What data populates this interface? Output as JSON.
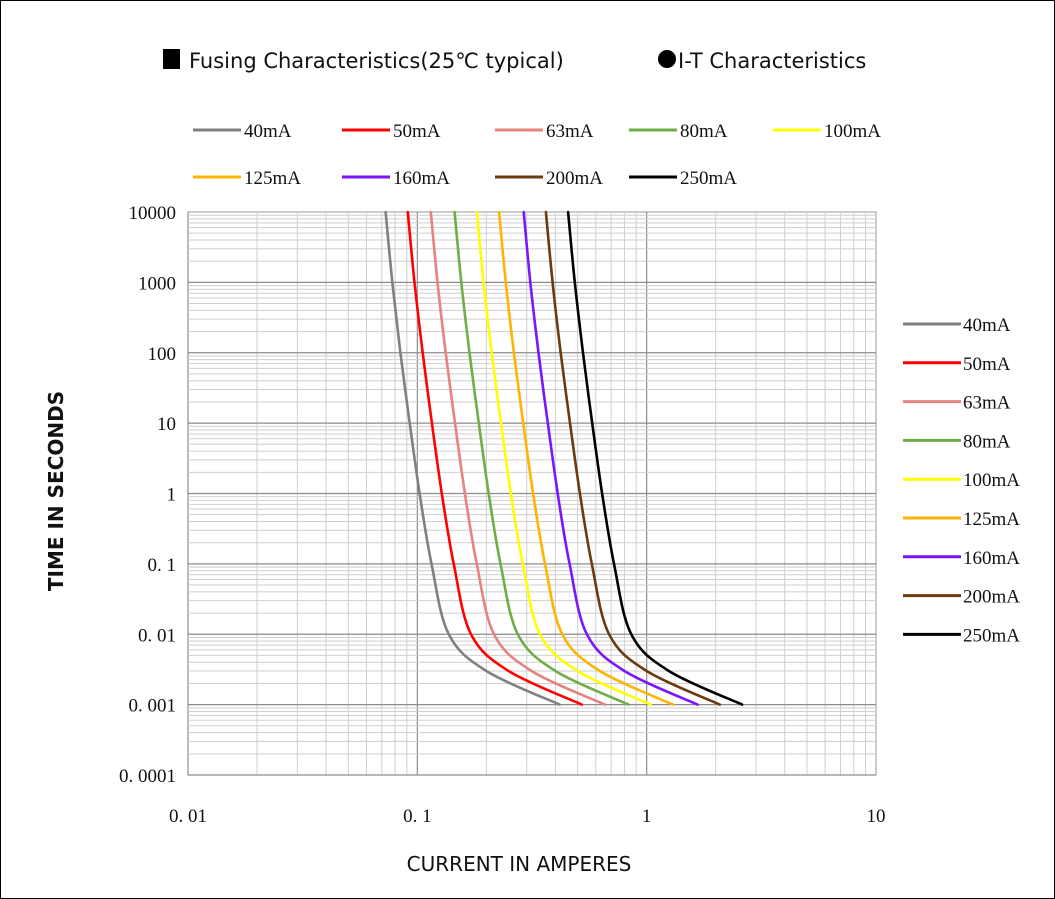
{
  "header": {
    "items": [
      {
        "marker": "square",
        "label": "Fusing Characteristics(25℃ typical)"
      },
      {
        "marker": "circle",
        "label": "I-T Characteristics"
      }
    ]
  },
  "chart_data": {
    "type": "line",
    "xscale": "log",
    "yscale": "log",
    "xlim": [
      0.01,
      10
    ],
    "ylim": [
      0.0001,
      10000
    ],
    "xlabel": "CURRENT IN AMPERES",
    "ylabel": "TIME IN SECONDS",
    "xtick_labels": [
      "0. 01",
      "0. 1",
      "1",
      "10"
    ],
    "ytick_labels": [
      "10000",
      "1000",
      "100",
      "10",
      "1",
      "0. 1",
      "0. 01",
      "0. 001",
      "0. 0001"
    ],
    "grid": true,
    "legend_placement": "top and right",
    "series": [
      {
        "name": "40mA",
        "color": "#808080",
        "x": [
          0.0727,
          0.0778,
          0.0844,
          0.0926,
          0.1023,
          0.1153,
          0.1371,
          0.2001,
          0.417
        ],
        "y": [
          10000,
          1000,
          100,
          10,
          1,
          0.1,
          0.01,
          0.003,
          0.001
        ]
      },
      {
        "name": "50mA",
        "color": "#ff0000",
        "x": [
          0.0909,
          0.0972,
          0.1055,
          0.1158,
          0.1279,
          0.1441,
          0.1714,
          0.2501,
          0.5213
        ],
        "y": [
          10000,
          1000,
          100,
          10,
          1,
          0.1,
          0.01,
          0.003,
          0.001
        ]
      },
      {
        "name": "63mA",
        "color": "#e6837f",
        "x": [
          0.1145,
          0.1225,
          0.1329,
          0.1459,
          0.1612,
          0.1816,
          0.216,
          0.3151,
          0.6568
        ],
        "y": [
          10000,
          1000,
          100,
          10,
          1,
          0.1,
          0.01,
          0.003,
          0.001
        ]
      },
      {
        "name": "80mA",
        "color": "#70ad47",
        "x": [
          0.1454,
          0.1555,
          0.1688,
          0.1853,
          0.2047,
          0.2306,
          0.2743,
          0.4002,
          0.834
        ],
        "y": [
          10000,
          1000,
          100,
          10,
          1,
          0.1,
          0.01,
          0.003,
          0.001
        ]
      },
      {
        "name": "100mA",
        "color": "#ffff00",
        "x": [
          0.1818,
          0.1944,
          0.211,
          0.2316,
          0.2558,
          0.2883,
          0.3428,
          0.5002,
          1.0425
        ],
        "y": [
          10000,
          1000,
          100,
          10,
          1,
          0.1,
          0.01,
          0.003,
          0.001
        ]
      },
      {
        "name": "125mA",
        "color": "#ffb400",
        "x": [
          0.2273,
          0.243,
          0.2638,
          0.2895,
          0.3198,
          0.3604,
          0.4285,
          0.6253,
          1.3031
        ],
        "y": [
          10000,
          1000,
          100,
          10,
          1,
          0.1,
          0.01,
          0.003,
          0.001
        ]
      },
      {
        "name": "160mA",
        "color": "#7a16ff",
        "x": [
          0.2909,
          0.311,
          0.3376,
          0.3706,
          0.4093,
          0.4612,
          0.5485,
          0.8003,
          1.668
        ],
        "y": [
          10000,
          1000,
          100,
          10,
          1,
          0.1,
          0.01,
          0.003,
          0.001
        ]
      },
      {
        "name": "200mA",
        "color": "#6b3a0e",
        "x": [
          0.3636,
          0.3888,
          0.422,
          0.4632,
          0.5116,
          0.5765,
          0.6856,
          1.0004,
          2.085
        ],
        "y": [
          10000,
          1000,
          100,
          10,
          1,
          0.1,
          0.01,
          0.003,
          0.001
        ]
      },
      {
        "name": "250mA",
        "color": "#000000",
        "x": [
          0.4545,
          0.486,
          0.5275,
          0.579,
          0.6395,
          0.7206,
          0.857,
          1.2505,
          2.6063
        ],
        "y": [
          10000,
          1000,
          100,
          10,
          1,
          0.1,
          0.01,
          0.003,
          0.001
        ]
      }
    ]
  }
}
